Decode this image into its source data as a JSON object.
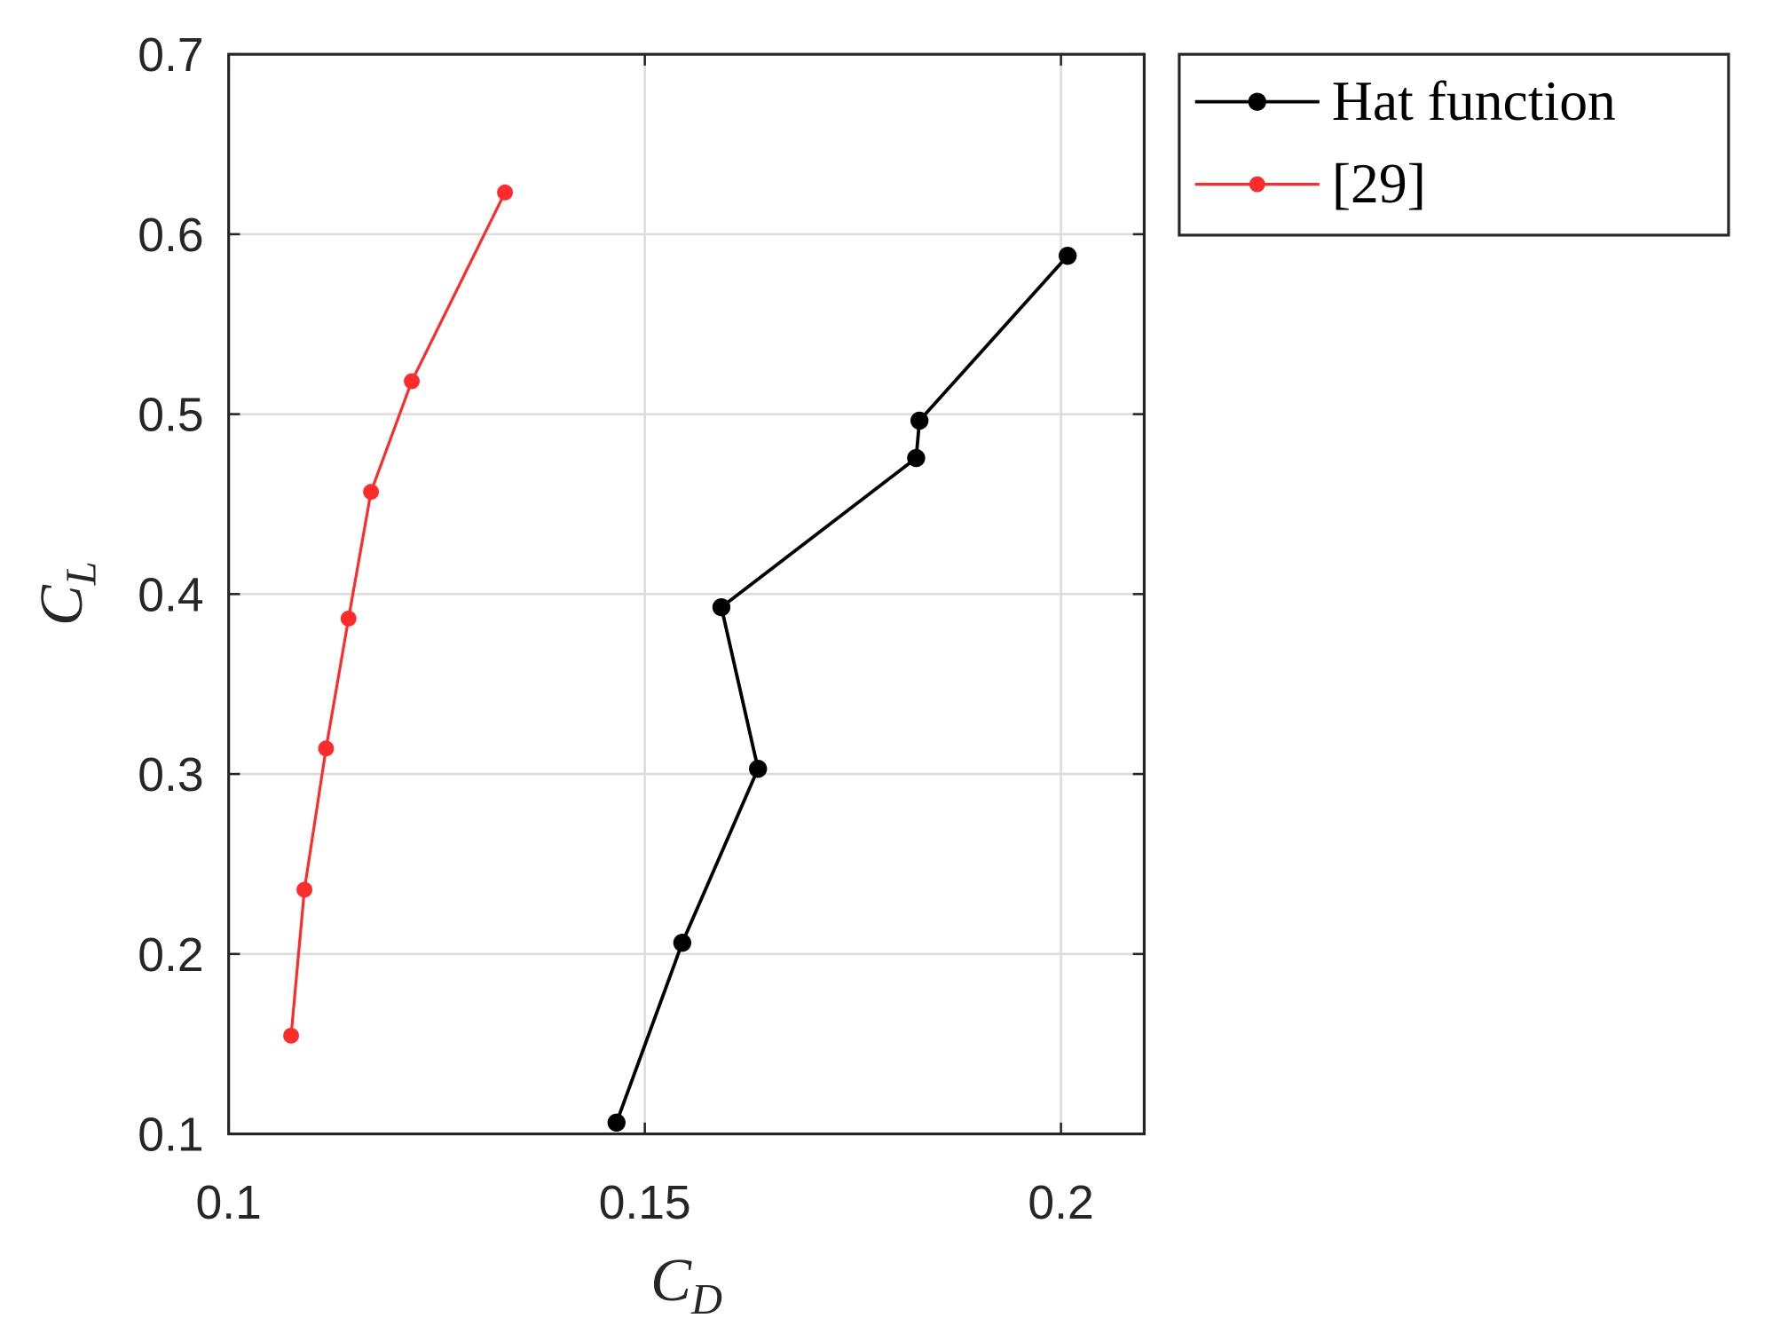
{
  "chart_data": {
    "type": "line",
    "xlabel": [
      "C",
      "D"
    ],
    "ylabel": [
      "C",
      "L"
    ],
    "xlim": [
      0.1,
      0.21
    ],
    "ylim": [
      0.1,
      0.7
    ],
    "xticks": [
      0.1,
      0.15,
      0.2
    ],
    "yticks": [
      0.1,
      0.2,
      0.3,
      0.4,
      0.5,
      0.6,
      0.7
    ],
    "grid": true,
    "legend": "outside-top-right",
    "series": [
      {
        "name": "Hat function",
        "color": "#000000",
        "x": [
          0.1466,
          0.1545,
          0.1636,
          0.1592,
          0.1826,
          0.183,
          0.2008
        ],
        "values": [
          0.1063,
          0.2062,
          0.3029,
          0.3927,
          0.4756,
          0.4964,
          0.588
        ]
      },
      {
        "name": "[29]",
        "color": "#ff2a2a",
        "x": [
          0.1075,
          0.1091,
          0.1117,
          0.1144,
          0.1171,
          0.122,
          0.1332
        ],
        "values": [
          0.1546,
          0.2357,
          0.3142,
          0.3864,
          0.4568,
          0.5183,
          0.6232
        ]
      }
    ]
  }
}
